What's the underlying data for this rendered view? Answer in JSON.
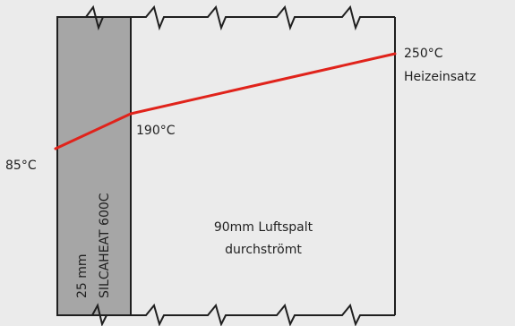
{
  "colors": {
    "background": "#ebebeb",
    "outline": "#1f1f1f",
    "insulation_fill": "#a6a6a6",
    "temperature_line": "#e0231b"
  },
  "labels": {
    "temp_hot": "250°C",
    "heater_insert": "Heizeinsatz",
    "temp_interface": "190°C",
    "temp_outer": "85°C",
    "insulation_thickness": "25 mm",
    "insulation_material": "SILCAHEAT 600C",
    "air_gap_line1": "90mm Luftspalt",
    "air_gap_line2": "durchströmt"
  }
}
